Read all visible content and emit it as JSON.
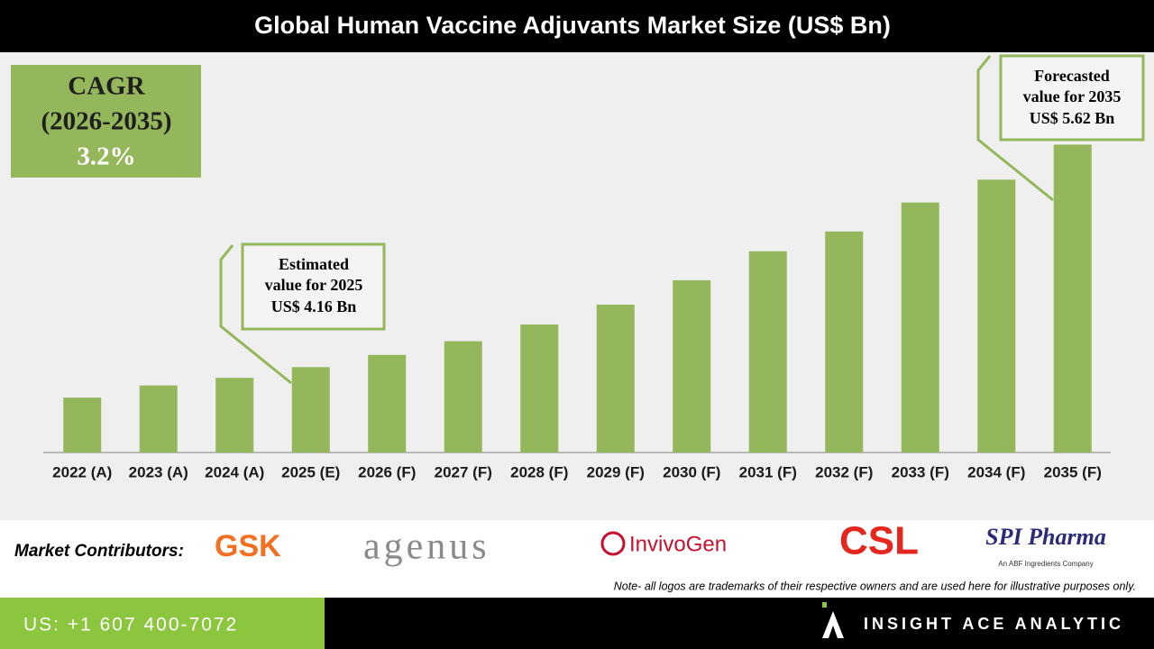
{
  "chart_data": {
    "type": "bar",
    "title": "Global Human Vaccine Adjuvants Market Size (US$ Bn)",
    "categories": [
      "2022 (A)",
      "2023 (A)",
      "2024 (A)",
      "2025 (E)",
      "2026 (F)",
      "2027 (F)",
      "2028 (F)",
      "2029 (F)",
      "2030 (F)",
      "2031 (F)",
      "2032 (F)",
      "2033 (F)",
      "2034 (F)",
      "2035 (F)"
    ],
    "values": [
      3.96,
      4.04,
      4.09,
      4.16,
      4.24,
      4.33,
      4.44,
      4.57,
      4.73,
      4.92,
      5.05,
      5.24,
      5.39,
      5.62
    ],
    "color": "#93b75a",
    "ylim": [
      3.6,
      5.8
    ],
    "annotations": {
      "cagr": [
        "CAGR",
        "(2026-2035)",
        "3.2%"
      ],
      "estimated": [
        "Estimated",
        "value for 2025",
        "US$ 4.16 Bn"
      ],
      "forecasted": [
        "Forecasted",
        "value for 2035",
        "US$ 5.62 Bn"
      ]
    }
  },
  "contributors": {
    "label": "Market Contributors:",
    "logos": [
      "GSK",
      "agenus",
      "InvivoGen",
      "CSL",
      "SPI Pharma",
      "An ABF Ingredients Company"
    ],
    "note": "Note- all logos are trademarks of their respective owners and are used here for illustrative purposes only."
  },
  "footer": {
    "phone": "US: +1 607 400-7072",
    "brand": "INSIGHT ACE ANALYTIC"
  }
}
